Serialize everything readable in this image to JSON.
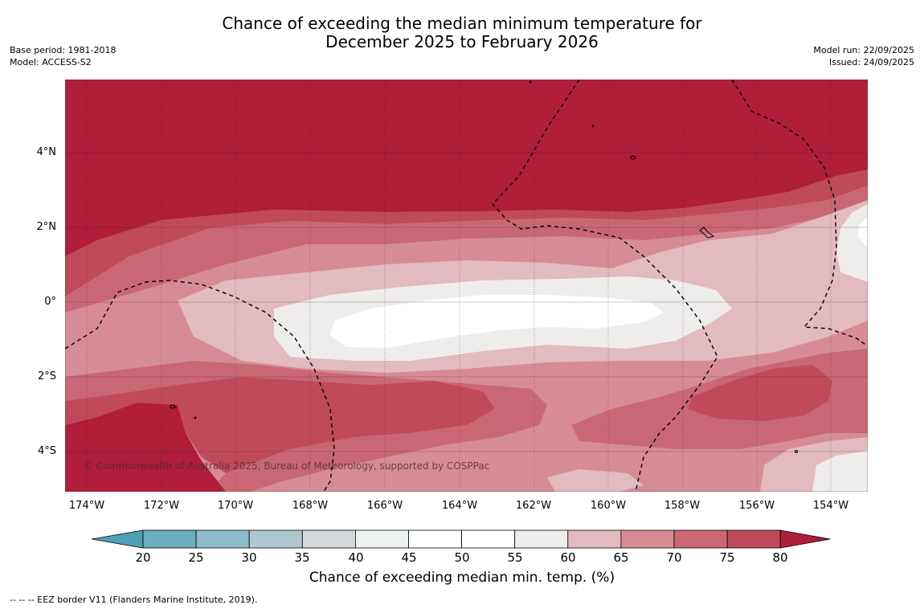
{
  "title": {
    "line1": "Chance of exceeding the median minimum temperature for",
    "line2": "December 2025 to February 2026"
  },
  "meta_left": {
    "base_period": "Base period: 1981-2018",
    "model": "Model: ACCESS-S2"
  },
  "meta_right": {
    "model_run": "Model run: 22/09/2025",
    "issued": "Issued: 24/09/2025"
  },
  "map": {
    "lat_labels": [
      "4°N",
      "2°N",
      "0°",
      "2°S",
      "4°S"
    ],
    "lon_labels": [
      "174°W",
      "172°W",
      "170°W",
      "168°W",
      "166°W",
      "164°W",
      "162°W",
      "160°W",
      "158°W",
      "156°W",
      "154°W"
    ],
    "copyright": "© Commonwealth of Australia 2025, Bureau of Meteorology, supported by COSPPac"
  },
  "colorbar": {
    "ticks": [
      "20",
      "25",
      "30",
      "35",
      "40",
      "45",
      "50",
      "55",
      "60",
      "65",
      "70",
      "75",
      "80"
    ],
    "label": "Chance of exceeding median min. temp. (%)",
    "colors": [
      "#4ea0b4",
      "#6aaebf",
      "#8cbcc8",
      "#aec9ce",
      "#d2dadb",
      "#ecf1f1",
      "#ffffff",
      "#ffffff",
      "#efedec",
      "#e3babf",
      "#d68c96",
      "#c96874",
      "#bf4a59",
      "#b01e3a"
    ]
  },
  "footnote": "--  --  -- EEZ border V11 (Flanders Marine Institute, 2019)."
}
